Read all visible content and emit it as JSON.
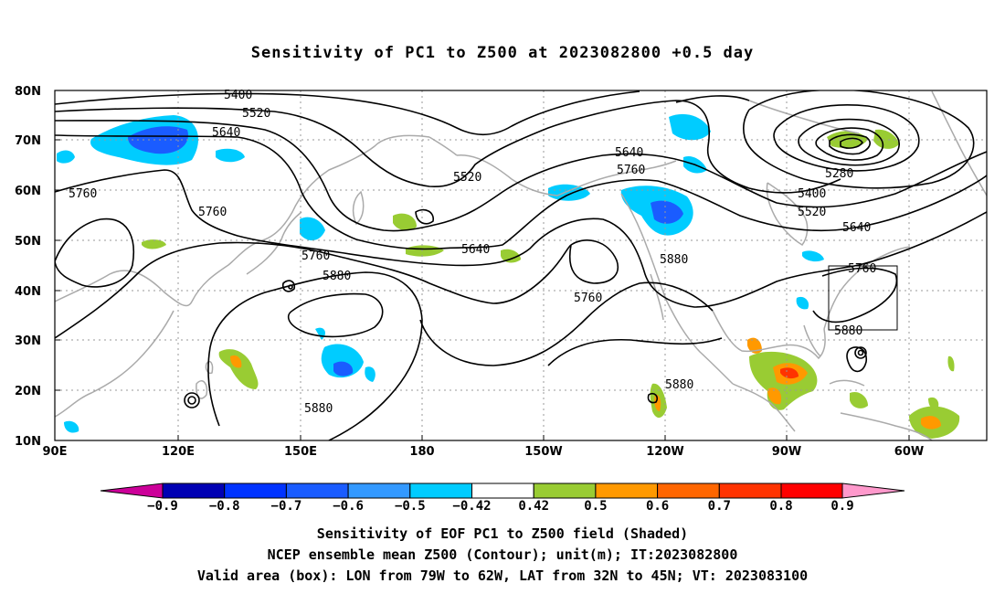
{
  "title": "Sensitivity of PC1 to Z500 at 2023082800 +0.5 day",
  "lat_labels": [
    "80N",
    "70N",
    "60N",
    "50N",
    "40N",
    "30N",
    "20N",
    "10N"
  ],
  "lon_labels": [
    "90E",
    "120E",
    "150E",
    "180",
    "150W",
    "120W",
    "90W",
    "60W"
  ],
  "contour_labels": [
    "5400",
    "5520",
    "5640",
    "5760",
    "5760",
    "5520",
    "5640",
    "5760",
    "5640",
    "5760",
    "5880",
    "5760",
    "5880",
    "5880",
    "5280",
    "5400",
    "5520",
    "5640",
    "5760",
    "5880",
    "5880"
  ],
  "colorbar": {
    "labels": [
      "-0.9",
      "-0.8",
      "-0.7",
      "-0.6",
      "-0.5",
      "-0.42",
      "0.42",
      "0.5",
      "0.6",
      "0.7",
      "0.8",
      "0.9"
    ],
    "colors": [
      "#cc0099",
      "#0000b3",
      "#0033ff",
      "#1a5cff",
      "#3399ff",
      "#00ccff",
      "#ffffff",
      "#99cc33",
      "#ff9900",
      "#ff6600",
      "#ff3300",
      "#ff0000",
      "#ff99cc"
    ]
  },
  "valid_box": {
    "lon_from": "79W",
    "lon_to": "62W",
    "lat_from": "32N",
    "lat_to": "45N"
  },
  "captions": [
    "Sensitivity of EOF PC1 to Z500 field (Shaded)",
    "NCEP ensemble mean Z500 (Contour); unit(m); IT:2023082800",
    "Valid area (box): LON from 79W to 62W, LAT from 32N to 45N; VT: 2023083100"
  ],
  "colors": {
    "coast": "#aaaaaa",
    "contour": "#000000",
    "grid": "#999999"
  }
}
